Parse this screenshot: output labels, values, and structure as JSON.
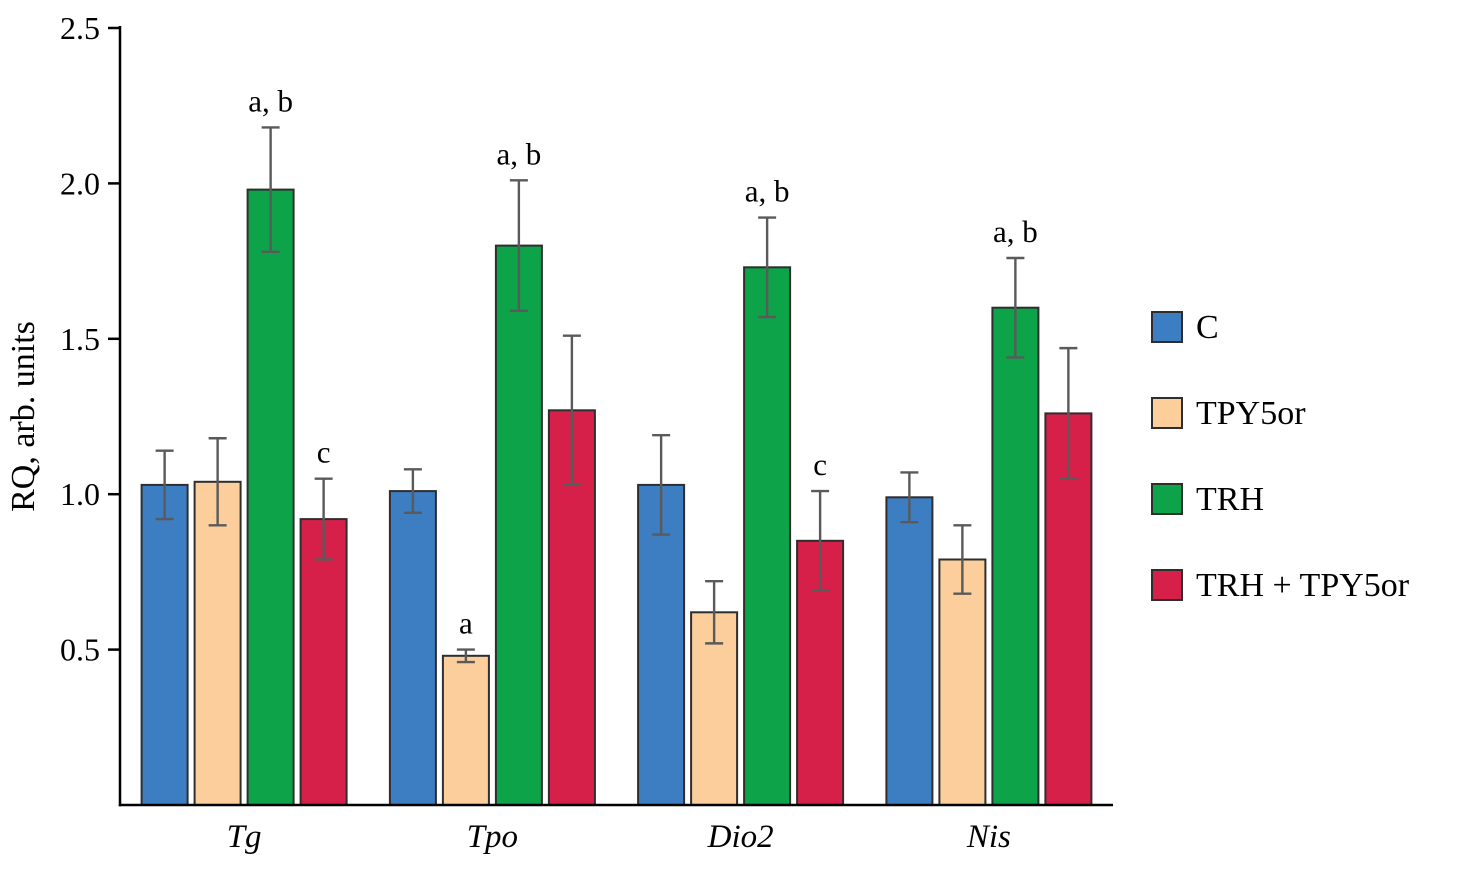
{
  "chart_data": {
    "type": "bar",
    "title": "",
    "xlabel": "",
    "ylabel": "RQ, arb. units",
    "ylim": [
      0,
      2.5
    ],
    "yticks": [
      0.5,
      1.0,
      1.5,
      2.0,
      2.5
    ],
    "grid": false,
    "categories": [
      "Tg",
      "Tpo",
      "Dio2",
      "Nis"
    ],
    "series": [
      {
        "name": "C",
        "color": "#3d7dc2",
        "values": [
          1.03,
          1.01,
          1.03,
          0.99
        ],
        "errors": [
          0.11,
          0.07,
          0.16,
          0.08
        ]
      },
      {
        "name": "TPY5or",
        "color": "#fbce9c",
        "values": [
          1.04,
          0.48,
          0.62,
          0.79
        ],
        "errors": [
          0.14,
          0.02,
          0.1,
          0.11
        ]
      },
      {
        "name": "TRH",
        "color": "#0ca349",
        "values": [
          1.98,
          1.8,
          1.73,
          1.6
        ],
        "errors": [
          0.2,
          0.21,
          0.16,
          0.16
        ]
      },
      {
        "name": "TRH + TPY5or",
        "color": "#d61f49",
        "values": [
          0.92,
          1.27,
          0.85,
          1.26
        ],
        "errors": [
          0.13,
          0.24,
          0.16,
          0.21
        ]
      }
    ],
    "annotations": [
      {
        "category": "Tg",
        "series": "TRH",
        "text": "a, b"
      },
      {
        "category": "Tg",
        "series": "TRH + TPY5or",
        "text": "c"
      },
      {
        "category": "Tpo",
        "series": "TPY5or",
        "text": "a"
      },
      {
        "category": "Tpo",
        "series": "TRH",
        "text": "a, b"
      },
      {
        "category": "Dio2",
        "series": "TRH",
        "text": "a, b"
      },
      {
        "category": "Dio2",
        "series": "TRH + TPY5or",
        "text": "c"
      },
      {
        "category": "Nis",
        "series": "TRH",
        "text": "a, b"
      }
    ],
    "legend": {
      "position": "right",
      "entries": [
        "C",
        "TPY5or",
        "TRH",
        "TRH + TPY5or"
      ]
    }
  }
}
